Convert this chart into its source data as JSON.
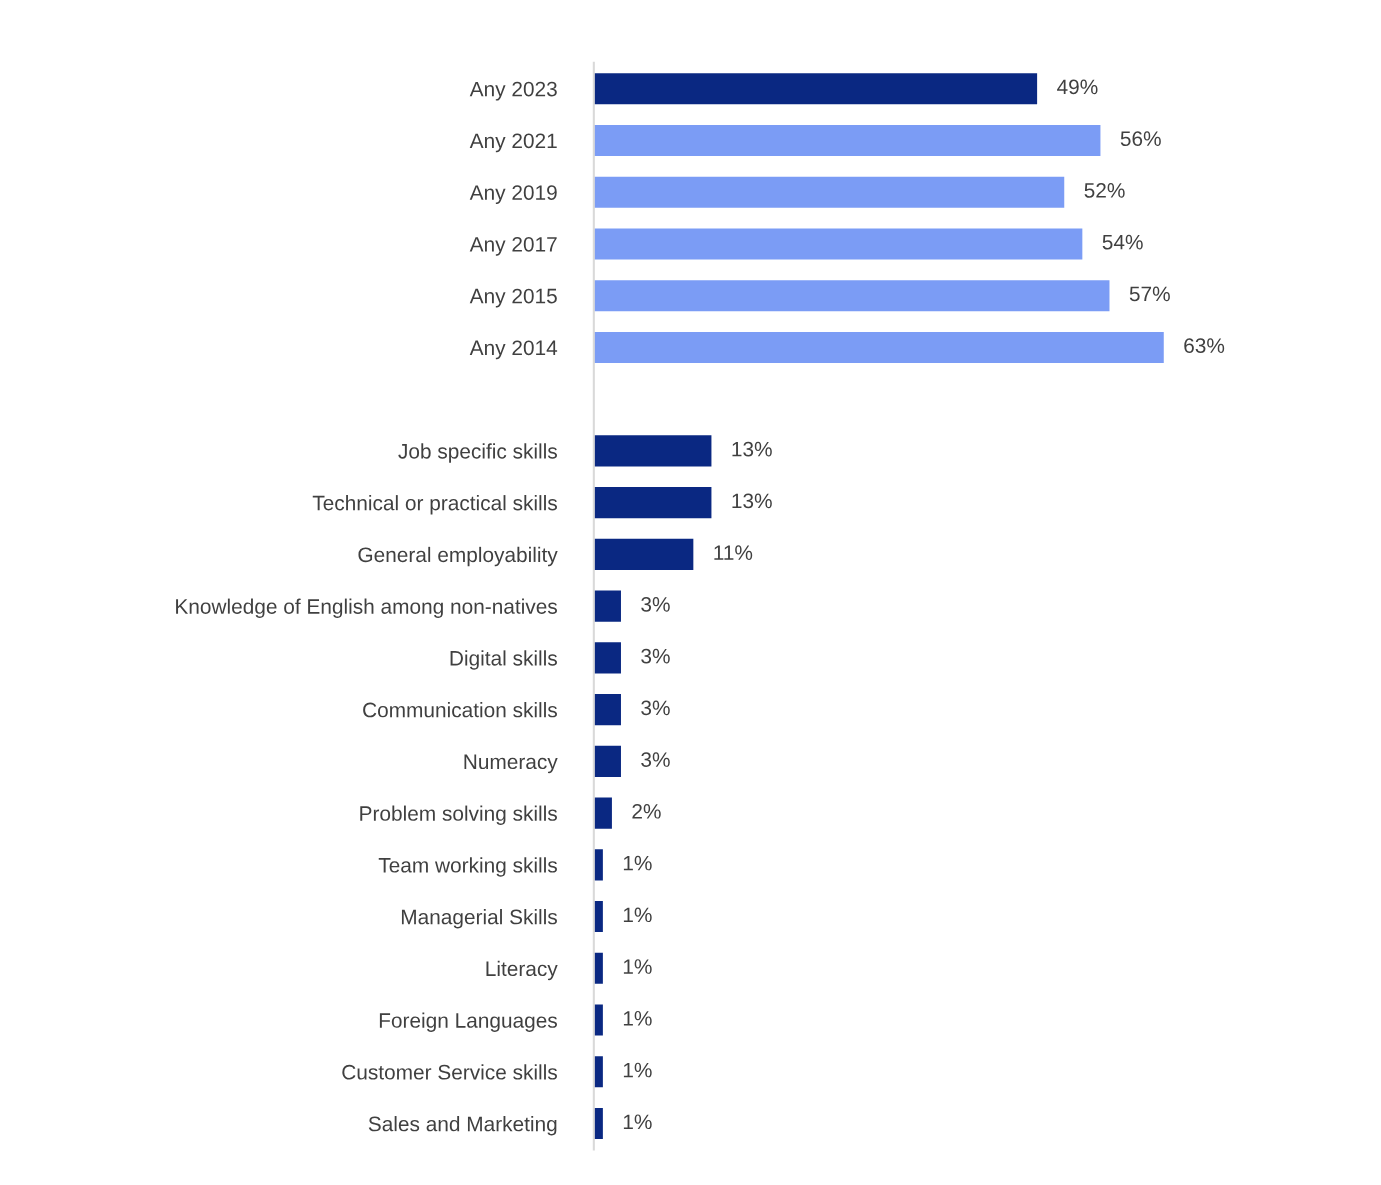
{
  "chart_data": {
    "type": "bar",
    "orientation": "horizontal",
    "categories": [
      "Any 2023",
      "Any 2021",
      "Any 2019",
      "Any 2017",
      "Any 2015",
      "Any 2014",
      null,
      "Job specific skills",
      "Technical or practical skills",
      "General employability",
      "Knowledge of English among non-natives",
      "Digital skills",
      "Communication skills",
      "Numeracy",
      "Problem solving skills",
      "Team working skills",
      "Managerial Skills",
      "Literacy",
      "Foreign Languages",
      "Customer Service skills",
      "Sales and Marketing"
    ],
    "values": [
      49,
      56,
      52,
      54,
      57,
      63,
      null,
      13,
      13,
      11,
      3,
      3,
      3,
      3,
      2,
      1,
      1,
      1,
      1,
      1,
      1
    ],
    "colors": [
      "#0a2882",
      "#7b9cf5",
      "#7b9cf5",
      "#7b9cf5",
      "#7b9cf5",
      "#7b9cf5",
      null,
      "#0a2882",
      "#0a2882",
      "#0a2882",
      "#0a2882",
      "#0a2882",
      "#0a2882",
      "#0a2882",
      "#0a2882",
      "#0a2882",
      "#0a2882",
      "#0a2882",
      "#0a2882",
      "#0a2882",
      "#0a2882"
    ],
    "value_labels": [
      "49%",
      "56%",
      "52%",
      "54%",
      "57%",
      "63%",
      null,
      "13%",
      "13%",
      "11%",
      "3%",
      "3%",
      "3%",
      "3%",
      "2%",
      "1%",
      "1%",
      "1%",
      "1%",
      "1%",
      "1%"
    ],
    "grid": false,
    "legend": false
  }
}
